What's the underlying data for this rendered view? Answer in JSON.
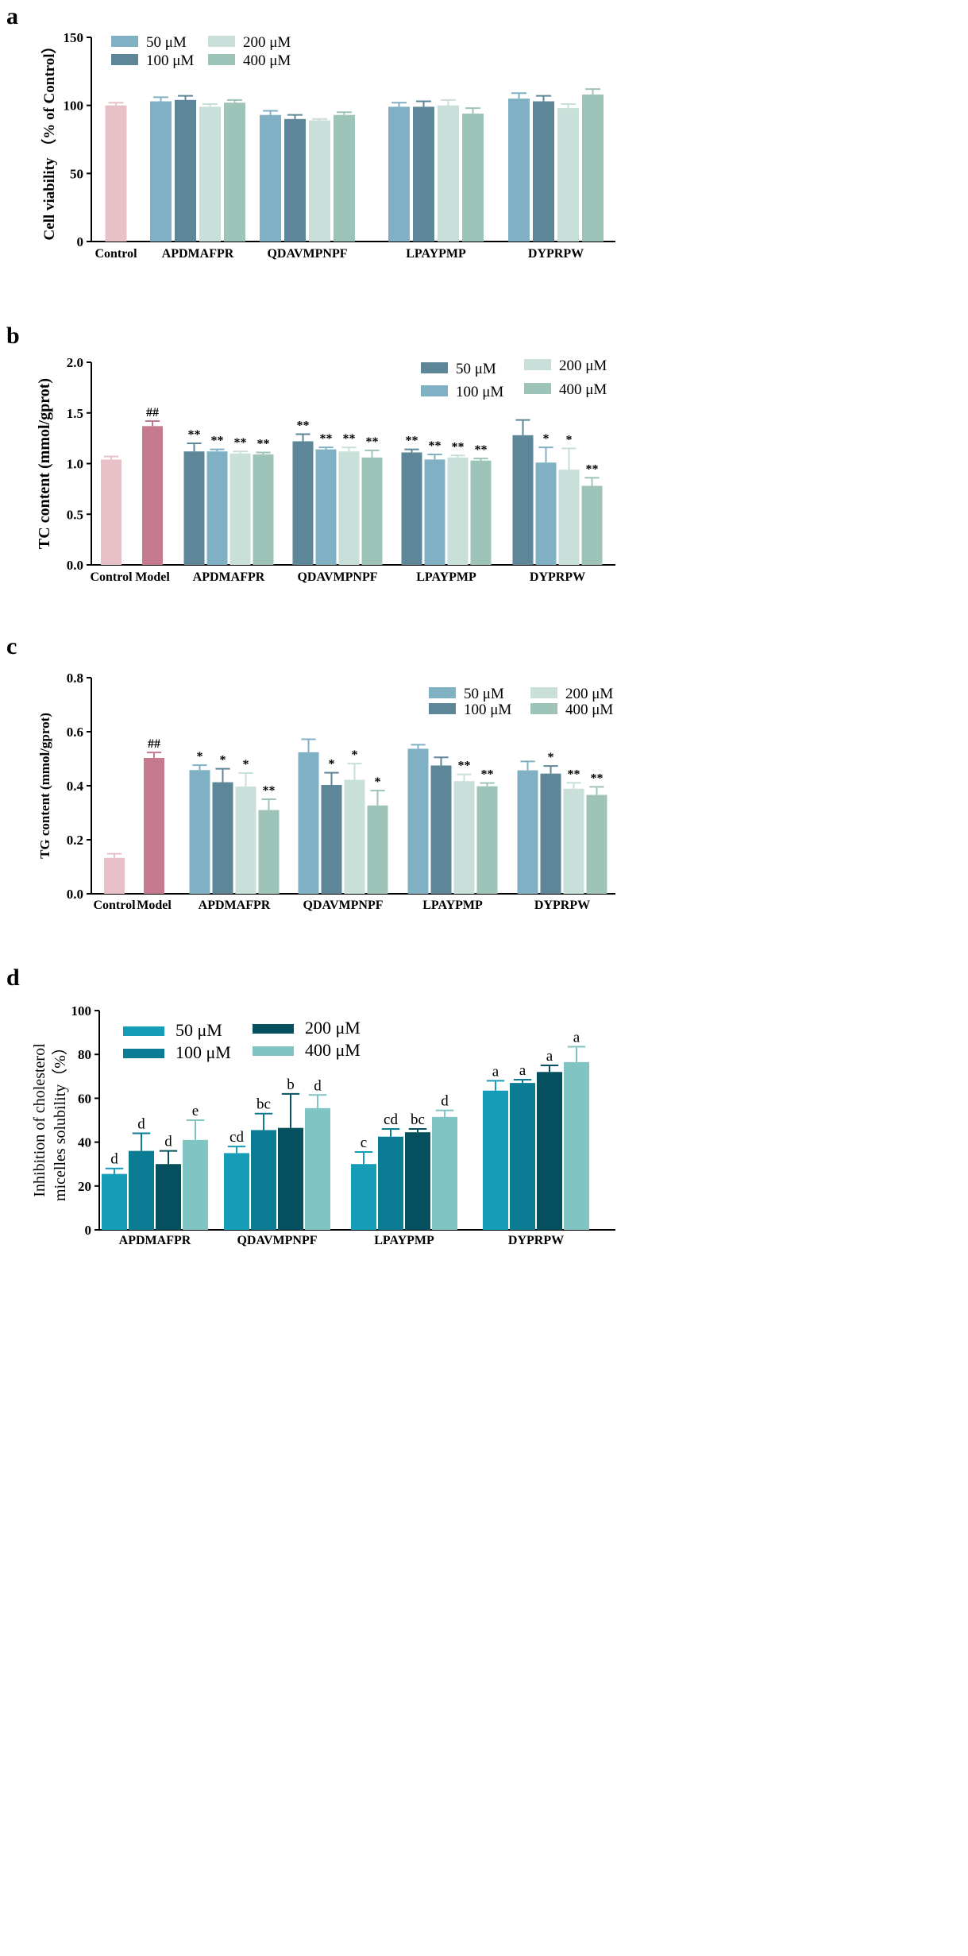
{
  "chart_data": [
    {
      "type": "bar",
      "panel_label": "a",
      "ylabel": "Cell  viability （% of Control）",
      "ylim": [
        0,
        150
      ],
      "yticks": [
        "0",
        "50",
        "100",
        "150"
      ],
      "legend": [
        "50 μM",
        "100 μM",
        "200 μM",
        "400 μM"
      ],
      "groups": [
        {
          "label": "Control",
          "values": [
            100
          ],
          "errors": [
            2
          ],
          "marks": [
            ""
          ]
        },
        {
          "label": "APDMAFPR",
          "values": [
            103,
            104,
            99,
            102
          ],
          "errors": [
            3,
            3,
            2,
            2
          ],
          "marks": [
            "",
            "",
            "",
            ""
          ]
        },
        {
          "label": "QDAVMPNPF",
          "values": [
            93,
            90,
            89,
            93
          ],
          "errors": [
            3,
            3,
            1,
            2
          ],
          "marks": [
            "",
            "",
            "",
            ""
          ]
        },
        {
          "label": "LPAYPMP",
          "values": [
            99,
            99,
            100,
            94
          ],
          "errors": [
            3,
            4,
            4,
            4
          ],
          "marks": [
            "",
            "",
            "",
            ""
          ]
        },
        {
          "label": "DYPRPW",
          "values": [
            105,
            103,
            98,
            108
          ],
          "errors": [
            4,
            4,
            3,
            4
          ],
          "marks": [
            "",
            "",
            "",
            ""
          ]
        }
      ]
    },
    {
      "type": "bar",
      "panel_label": "b",
      "ylabel": "TC content (mmol/gprot)",
      "ylim": [
        0,
        2.0
      ],
      "yticks": [
        "0.0",
        "0.5",
        "1.0",
        "1.5",
        "2.0"
      ],
      "legend": [
        "50 μM",
        "100 μM",
        "200 μM",
        "400 μM"
      ],
      "groups": [
        {
          "label": "Control",
          "values": [
            1.04
          ],
          "errors": [
            0.03
          ],
          "marks": [
            ""
          ]
        },
        {
          "label": "Model",
          "values": [
            1.37
          ],
          "errors": [
            0.05
          ],
          "marks": [
            "##"
          ]
        },
        {
          "label": "APDMAFPR",
          "values": [
            1.12,
            1.12,
            1.1,
            1.09
          ],
          "errors": [
            0.08,
            0.02,
            0.02,
            0.02
          ],
          "marks": [
            "**",
            "**",
            "**",
            "**"
          ]
        },
        {
          "label": "QDAVMPNPF",
          "values": [
            1.22,
            1.14,
            1.12,
            1.06
          ],
          "errors": [
            0.07,
            0.02,
            0.04,
            0.07
          ],
          "marks": [
            "**",
            "**",
            "**",
            "**"
          ]
        },
        {
          "label": "LPAYPMP",
          "values": [
            1.11,
            1.04,
            1.06,
            1.03
          ],
          "errors": [
            0.03,
            0.05,
            0.02,
            0.02
          ],
          "marks": [
            "**",
            "**",
            "**",
            "**"
          ]
        },
        {
          "label": "DYPRPW",
          "values": [
            1.28,
            1.01,
            0.94,
            0.78
          ],
          "errors": [
            0.15,
            0.15,
            0.21,
            0.08
          ],
          "marks": [
            "",
            "*",
            "*",
            "**"
          ]
        }
      ]
    },
    {
      "type": "bar",
      "panel_label": "c",
      "ylabel": "TG content (mmol/gprot)",
      "ylim": [
        0,
        0.8
      ],
      "yticks": [
        "0.0",
        "0.2",
        "0.4",
        "0.6",
        "0.8"
      ],
      "legend": [
        "50 μM",
        "100 μM",
        "200 μM",
        "400 μM"
      ],
      "groups": [
        {
          "label": "Control",
          "values": [
            0.133
          ],
          "errors": [
            0.015
          ],
          "marks": [
            ""
          ]
        },
        {
          "label": "Model",
          "values": [
            0.503
          ],
          "errors": [
            0.02
          ],
          "marks": [
            "##"
          ]
        },
        {
          "label": "APDMAFPR",
          "values": [
            0.458,
            0.413,
            0.397,
            0.31
          ],
          "errors": [
            0.018,
            0.05,
            0.05,
            0.04
          ],
          "marks": [
            "*",
            "*",
            "*",
            "**"
          ]
        },
        {
          "label": "QDAVMPNPF",
          "values": [
            0.524,
            0.403,
            0.422,
            0.327
          ],
          "errors": [
            0.048,
            0.045,
            0.06,
            0.055
          ],
          "marks": [
            "",
            "*",
            "*",
            "*"
          ]
        },
        {
          "label": "LPAYPMP",
          "values": [
            0.537,
            0.475,
            0.417,
            0.398
          ],
          "errors": [
            0.015,
            0.03,
            0.025,
            0.012
          ],
          "marks": [
            "",
            "",
            "**",
            "**"
          ]
        },
        {
          "label": "DYPRPW",
          "values": [
            0.457,
            0.445,
            0.389,
            0.366
          ],
          "errors": [
            0.033,
            0.028,
            0.022,
            0.03
          ],
          "marks": [
            "",
            "*",
            "**",
            "**"
          ]
        }
      ]
    },
    {
      "type": "bar",
      "panel_label": "d",
      "ylabel": [
        "Inhibition of cholesterol",
        "micelles solubility（%）"
      ],
      "ylim": [
        0,
        100
      ],
      "yticks": [
        "0",
        "20",
        "40",
        "60",
        "80",
        "100"
      ],
      "legend": [
        "50 μM",
        "100 μM",
        "200 μM",
        "400 μM"
      ],
      "groups": [
        {
          "label": "APDMAFPR",
          "values": [
            25.5,
            36,
            30,
            41
          ],
          "errors": [
            2.5,
            8,
            6,
            9
          ],
          "marks": [
            "d",
            "d",
            "d",
            "e"
          ]
        },
        {
          "label": "QDAVMPNPF",
          "values": [
            35,
            45.5,
            46.5,
            55.5
          ],
          "errors": [
            3,
            7.5,
            15.5,
            6
          ],
          "marks": [
            "cd",
            "bc",
            "b",
            "d"
          ]
        },
        {
          "label": "LPAYPMP",
          "values": [
            30,
            42.5,
            44.5,
            51.5
          ],
          "errors": [
            5.5,
            3.5,
            1.5,
            3
          ],
          "marks": [
            "c",
            "cd",
            "bc",
            "d"
          ]
        },
        {
          "label": "DYPRPW",
          "values": [
            63.5,
            67,
            72,
            76.5
          ],
          "errors": [
            4.5,
            1.5,
            3,
            7
          ],
          "marks": [
            "a",
            "a",
            "a",
            "a"
          ]
        }
      ]
    }
  ],
  "colors": {
    "a_series": [
      "#7fb0c3",
      "#5e8699",
      "#c9dfd9",
      "#9ec3b8"
    ],
    "b_series": [
      "#5e8699",
      "#7fb0c3",
      "#c9dfd9",
      "#9ec3b8"
    ],
    "c_series": [
      "#7fb0c3",
      "#5e8699",
      "#c9dfd9",
      "#9ec3b8"
    ],
    "d_series": [
      "#159db8",
      "#0b7c93",
      "#05505f",
      "#80c4c4"
    ],
    "control": "#e8c1c8",
    "model": "#c57a8f",
    "axis": "#000000"
  }
}
